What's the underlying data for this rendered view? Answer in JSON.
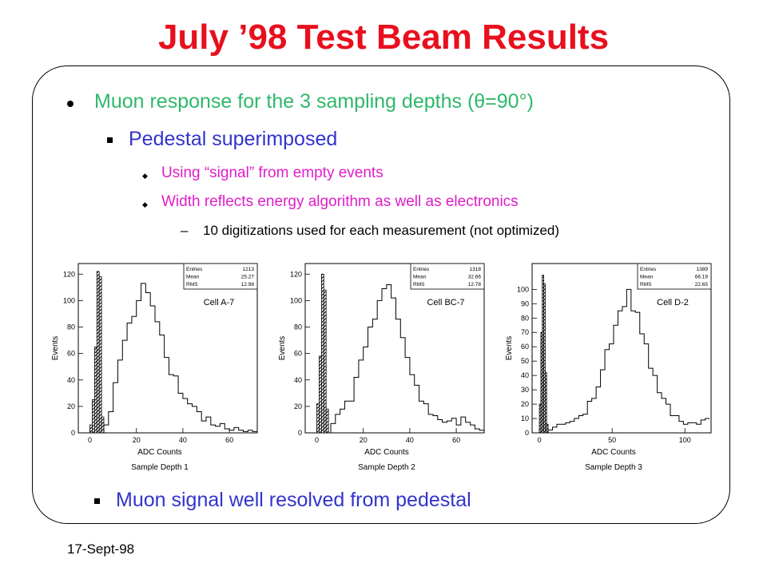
{
  "slide": {
    "title": "July ’98 Test Beam Results",
    "footer_date": "17-Sept-98"
  },
  "bullets": {
    "level1": "Muon response for the 3 sampling depths (θ=90°)",
    "level2_a": "Pedestal superimposed",
    "level3_a": "Using “signal” from empty events",
    "level3_b": "Width reflects energy algorithm as well as electronics",
    "level4_dash": "–",
    "level4_a": "10 digitizations used for each measurement (not optimized)",
    "level2_b": "Muon signal well resolved from pedestal"
  },
  "chart_data": [
    {
      "type": "histogram",
      "cell_label": "Cell A-7",
      "xlabel": "ADC Counts",
      "ylabel": "Events",
      "caption": "Sample Depth 1",
      "xlim": [
        -5,
        72
      ],
      "ylim": [
        0,
        128
      ],
      "xticks": [
        "0",
        "20",
        "40",
        "60"
      ],
      "yticks": [
        "0",
        "20",
        "40",
        "60",
        "80",
        "100",
        "120"
      ],
      "stats": {
        "Entries": "1213",
        "Mean": "25.27",
        "RMS": "12.98"
      },
      "stats_labels": [
        "Entries",
        "Mean",
        "RMS"
      ],
      "pedestal": {
        "bin_width": 1,
        "x": [
          0,
          1,
          2,
          3,
          4,
          5
        ],
        "values": [
          6,
          25,
          65,
          122,
          118,
          12
        ]
      },
      "signal": {
        "bin_width": 2,
        "x": [
          6,
          8,
          10,
          12,
          14,
          16,
          18,
          20,
          22,
          24,
          26,
          28,
          30,
          32,
          34,
          36,
          38,
          40,
          42,
          44,
          46,
          48,
          50,
          52,
          54,
          56,
          58,
          60,
          62,
          64,
          66,
          68,
          70
        ],
        "values": [
          6,
          16,
          38,
          55,
          70,
          83,
          88,
          100,
          113,
          106,
          96,
          84,
          74,
          57,
          44,
          43,
          30,
          26,
          22,
          20,
          16,
          9,
          12,
          6,
          5,
          7,
          3,
          2,
          4,
          2,
          1,
          2,
          1
        ]
      }
    },
    {
      "type": "histogram",
      "cell_label": "Cell BC-7",
      "xlabel": "ADC Counts",
      "ylabel": "Events",
      "caption": "Sample Depth 2",
      "xlim": [
        -5,
        72
      ],
      "ylim": [
        0,
        128
      ],
      "xticks": [
        "0",
        "20",
        "40",
        "60"
      ],
      "yticks": [
        "0",
        "20",
        "40",
        "60",
        "80",
        "100",
        "120"
      ],
      "stats": {
        "Entries": "1318",
        "Mean": "32.66",
        "RMS": "12.78"
      },
      "stats_labels": [
        "Entries",
        "Mean",
        "RMS"
      ],
      "pedestal": {
        "bin_width": 1,
        "x": [
          0,
          1,
          2,
          3,
          4
        ],
        "values": [
          22,
          58,
          120,
          108,
          18
        ]
      },
      "signal": {
        "bin_width": 2,
        "x": [
          6,
          8,
          10,
          12,
          14,
          16,
          18,
          20,
          22,
          24,
          26,
          28,
          30,
          32,
          34,
          36,
          38,
          40,
          42,
          44,
          46,
          48,
          50,
          52,
          54,
          56,
          58,
          60,
          62,
          64,
          66,
          68,
          70
        ],
        "values": [
          7,
          14,
          18,
          24,
          24,
          42,
          55,
          65,
          80,
          86,
          100,
          109,
          112,
          102,
          86,
          72,
          57,
          44,
          36,
          24,
          22,
          14,
          13,
          10,
          8,
          9,
          11,
          6,
          12,
          8,
          6,
          3,
          2
        ]
      }
    },
    {
      "type": "histogram",
      "cell_label": "Cell D-2",
      "xlabel": "ADC Counts",
      "ylabel": "Events",
      "caption": "Sample Depth 3",
      "xlim": [
        -5,
        118
      ],
      "ylim": [
        0,
        118
      ],
      "xticks": [
        "0",
        "50",
        "100"
      ],
      "yticks": [
        "0",
        "10",
        "20",
        "30",
        "40",
        "50",
        "60",
        "70",
        "80",
        "90",
        "100"
      ],
      "stats": {
        "Entries": "1389",
        "Mean": "66.19",
        "RMS": "22.65"
      },
      "stats_labels": [
        "Entries",
        "Mean",
        "RMS"
      ],
      "pedestal": {
        "bin_width": 1,
        "x": [
          0,
          1,
          2,
          3,
          4,
          5
        ],
        "values": [
          20,
          70,
          110,
          104,
          42,
          6
        ]
      },
      "signal": {
        "bin_width": 3,
        "x": [
          6,
          9,
          12,
          15,
          18,
          21,
          24,
          27,
          30,
          33,
          36,
          39,
          42,
          45,
          48,
          51,
          54,
          57,
          60,
          63,
          66,
          69,
          72,
          75,
          78,
          81,
          84,
          87,
          90,
          93,
          96,
          99,
          102,
          105,
          108,
          111,
          114
        ],
        "values": [
          2,
          4,
          6,
          6,
          7,
          8,
          10,
          12,
          13,
          22,
          24,
          32,
          44,
          58,
          62,
          75,
          85,
          88,
          100,
          85,
          84,
          69,
          62,
          45,
          40,
          28,
          24,
          20,
          12,
          12,
          8,
          6,
          7,
          7,
          6,
          9,
          10
        ]
      }
    }
  ]
}
